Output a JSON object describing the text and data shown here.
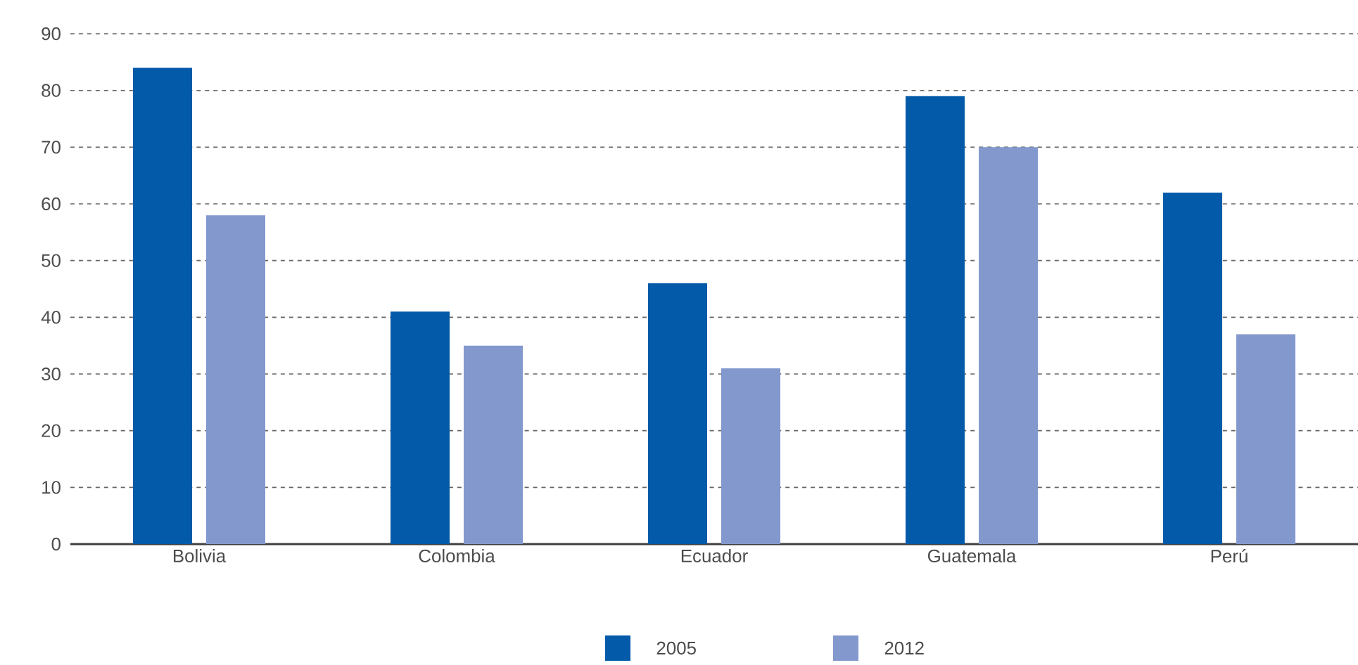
{
  "chart_data": {
    "type": "bar",
    "categories": [
      "Bolivia",
      "Colombia",
      "Ecuador",
      "Guatemala",
      "Perú"
    ],
    "series": [
      {
        "name": "2005",
        "color": "#025aa9",
        "values": [
          84,
          41,
          46,
          79,
          62
        ]
      },
      {
        "name": "2012",
        "color": "#8398cd",
        "values": [
          58,
          35,
          31,
          70,
          37
        ]
      }
    ],
    "ylim": [
      0,
      90
    ],
    "yticks": [
      0,
      10,
      20,
      30,
      40,
      50,
      60,
      70,
      80,
      90
    ],
    "grid": "y",
    "legend": "bottom"
  }
}
